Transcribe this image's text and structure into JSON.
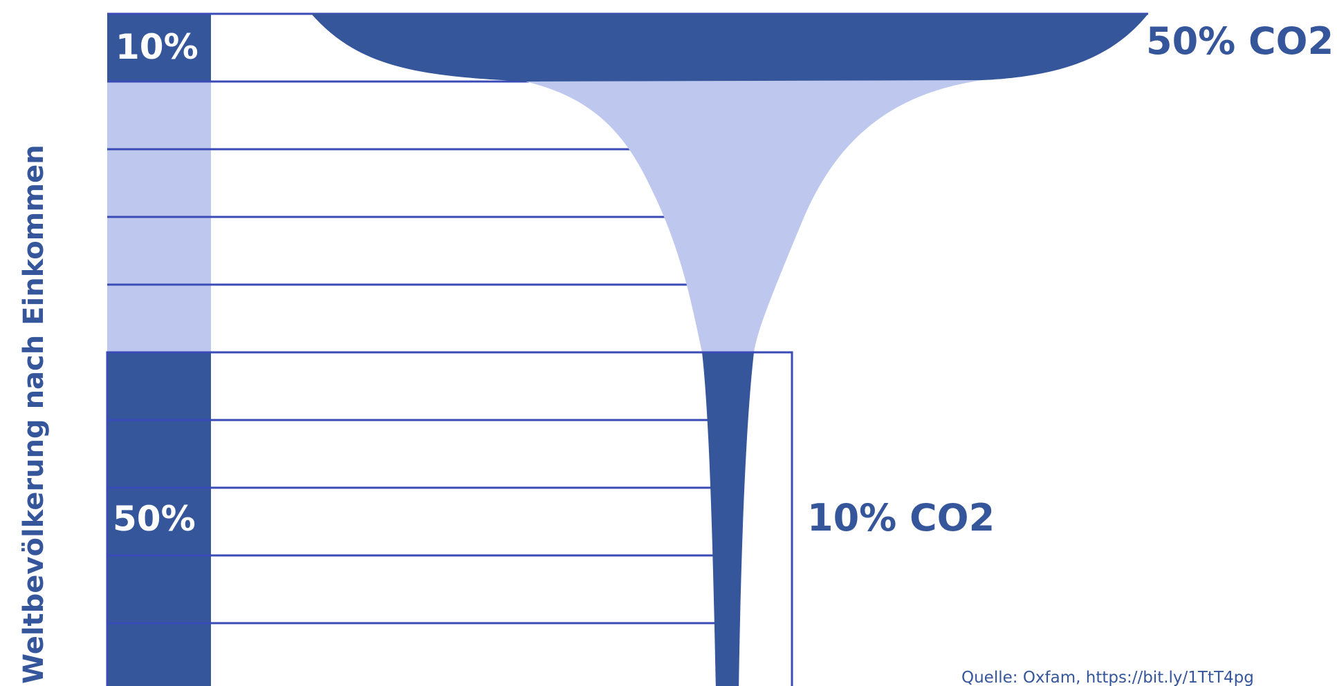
{
  "colors": {
    "dark": "#35569a",
    "light": "#bec8ee",
    "line": "#3a4bb7",
    "background": "#ffffff"
  },
  "chart_data": {
    "type": "bar",
    "ylabel": "Weltbevölkerung nach Einkommen",
    "source": "Quelle: Oxfam, https://bit.ly/1TtT4pg",
    "categories": [
      "1",
      "2",
      "3",
      "4",
      "5",
      "6",
      "7",
      "8",
      "9",
      "10"
    ],
    "groups": [
      {
        "label": "10%",
        "co2_label": "50% CO2",
        "population_share": 10,
        "co2_share": 50
      },
      {
        "label": "",
        "co2_label": "",
        "population_share": 40,
        "co2_share": 40
      },
      {
        "label": "50%",
        "co2_label": "10% CO2",
        "population_share": 50,
        "co2_share": 10
      }
    ],
    "values": [
      49,
      13,
      10,
      8,
      7,
      4.5,
      3.5,
      2.5,
      1.7,
      0.8
    ],
    "grid": true,
    "legend": "none"
  }
}
